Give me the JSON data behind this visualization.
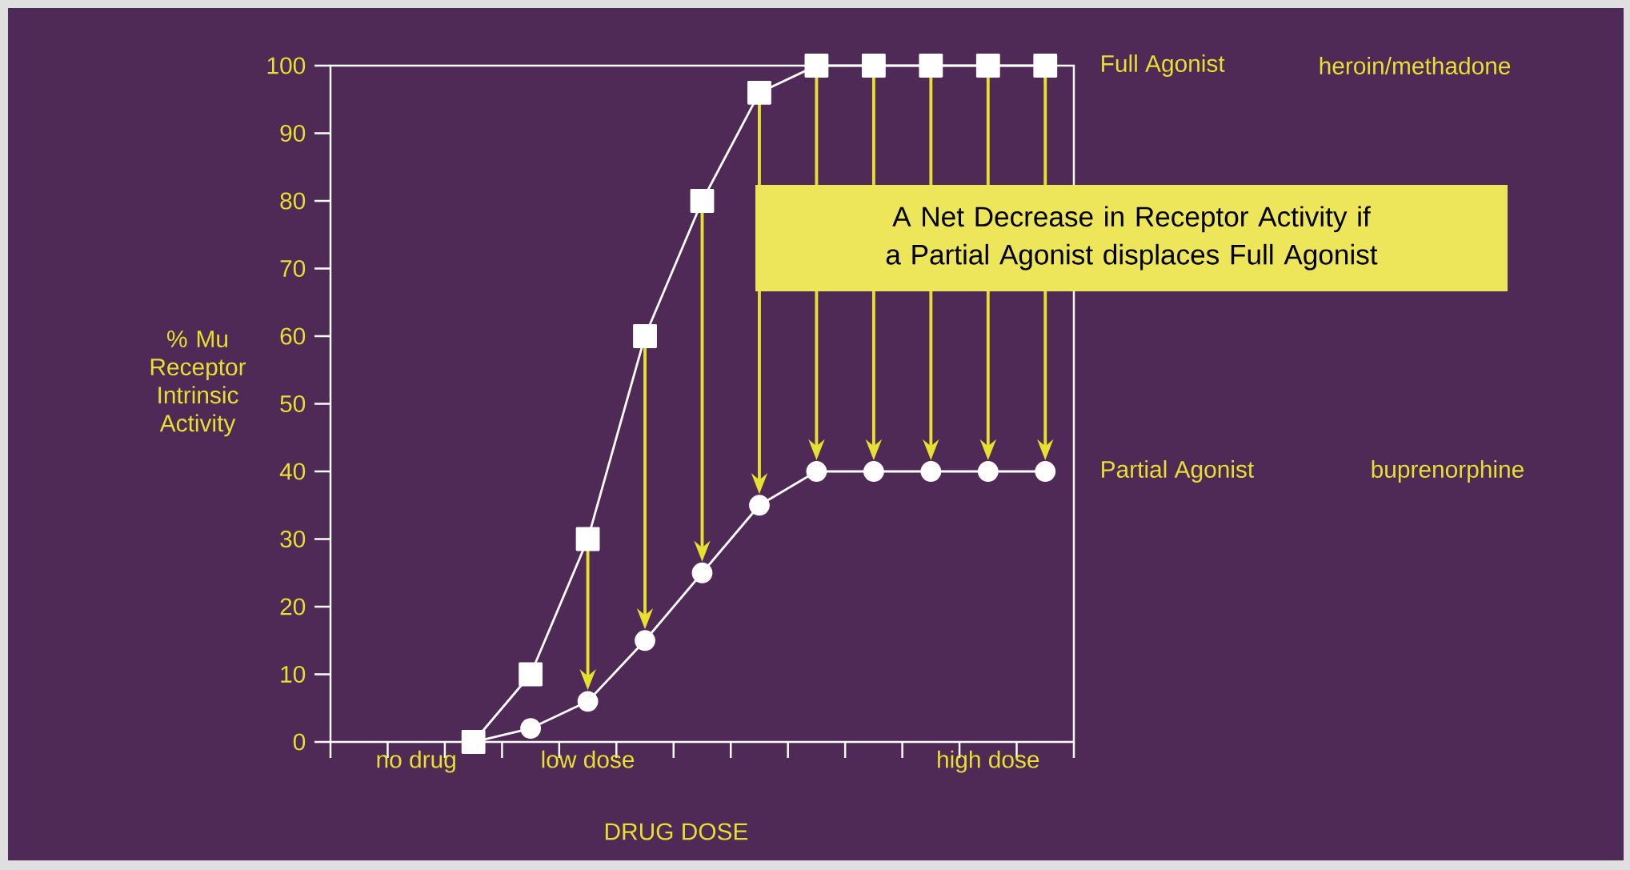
{
  "chart_data": {
    "type": "line",
    "xlabel": "DRUG DOSE",
    "ylabel": "% Mu Receptor Intrinsic Activity",
    "categories": [
      null,
      "no drug",
      null,
      null,
      "low dose",
      null,
      null,
      null,
      null,
      null,
      null,
      "high dose",
      null
    ],
    "series": [
      {
        "name": "Full Agonist",
        "color": "#ffffff",
        "marker": "square",
        "values": [
          null,
          null,
          0,
          10,
          30,
          60,
          80,
          96,
          100,
          100,
          100,
          100,
          100
        ]
      },
      {
        "name": "Partial Agonist",
        "color": "#ffffff",
        "marker": "circle",
        "values": [
          null,
          null,
          0,
          2,
          6,
          15,
          25,
          35,
          40,
          40,
          40,
          40,
          40
        ]
      }
    ],
    "ylim": [
      0,
      100
    ],
    "yticks": [
      0,
      10,
      20,
      30,
      40,
      50,
      60,
      70,
      80,
      90,
      100
    ],
    "annotations": [
      "heroin/methadone",
      "buprenorphine",
      "A Net Decrease in Receptor Activity if a Partial Agonist displaces Full Agonist"
    ]
  }
}
